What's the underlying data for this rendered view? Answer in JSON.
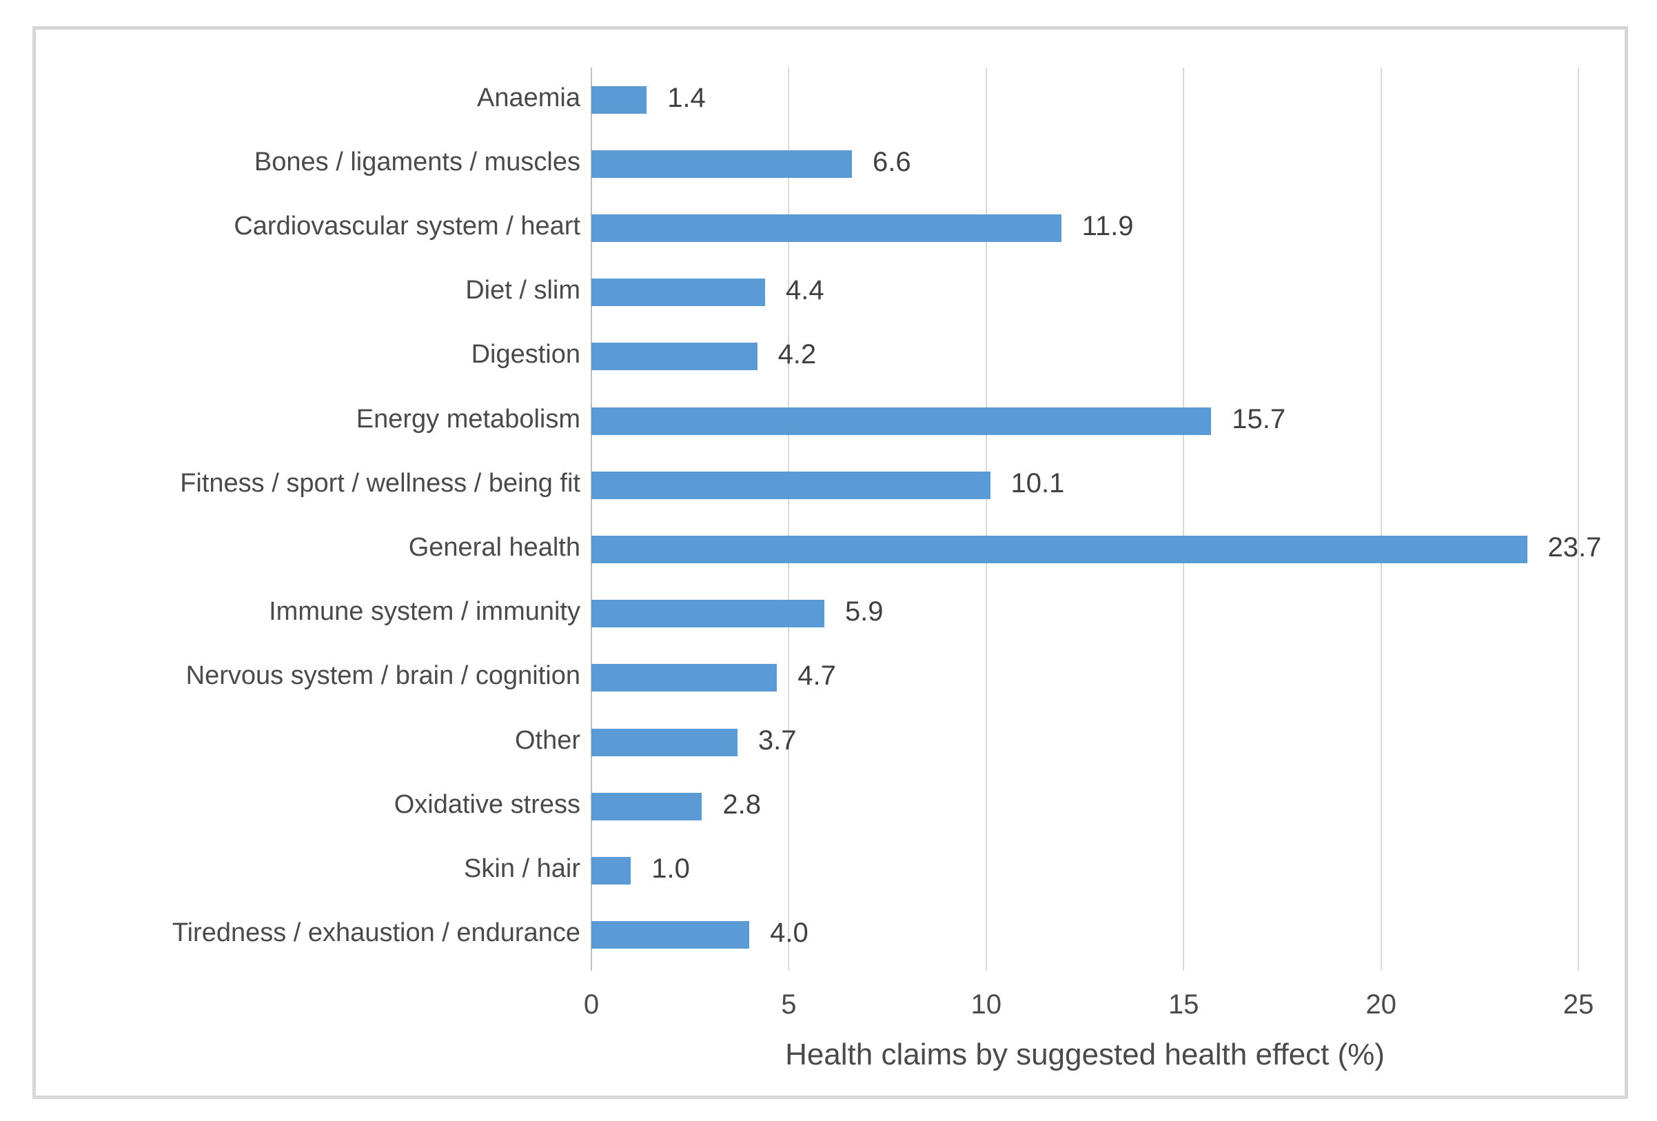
{
  "chart_data": {
    "type": "bar",
    "orientation": "horizontal",
    "title": "",
    "xlabel": "Health claims by suggested health effect (%)",
    "ylabel": "",
    "categories": [
      "Anaemia",
      "Bones / ligaments / muscles",
      "Cardiovascular system / heart",
      "Diet / slim",
      "Digestion",
      "Energy metabolism",
      "Fitness / sport / wellness / being fit",
      "General health",
      "Immune system / immunity",
      "Nervous system / brain / cognition",
      "Other",
      "Oxidative stress",
      "Skin / hair",
      "Tiredness / exhaustion / endurance"
    ],
    "values": [
      1.4,
      6.6,
      11.9,
      4.4,
      4.2,
      15.7,
      10.1,
      23.7,
      5.9,
      4.7,
      3.7,
      2.8,
      1.0,
      4.0
    ],
    "value_labels": [
      "1.4",
      "6.6",
      "11.9",
      "4.4",
      "4.2",
      "15.7",
      "10.1",
      "23.7",
      "5.9",
      "4.7",
      "3.7",
      "2.8",
      "1.0",
      "4.0"
    ],
    "xticks": [
      0,
      5,
      10,
      15,
      20,
      25
    ],
    "xtick_labels": [
      "0",
      "5",
      "10",
      "15",
      "20",
      "25"
    ],
    "xlim": [
      0,
      25
    ],
    "grid": true,
    "legend": false,
    "data_labels": true,
    "colors": {
      "bar": "#5B9BD5",
      "gridline": "#D9D9D9",
      "axis_line": "#BFBFBF",
      "text": "#4A4A4A",
      "frame_border": "#D6D6D6",
      "background": "#FFFFFF"
    }
  }
}
